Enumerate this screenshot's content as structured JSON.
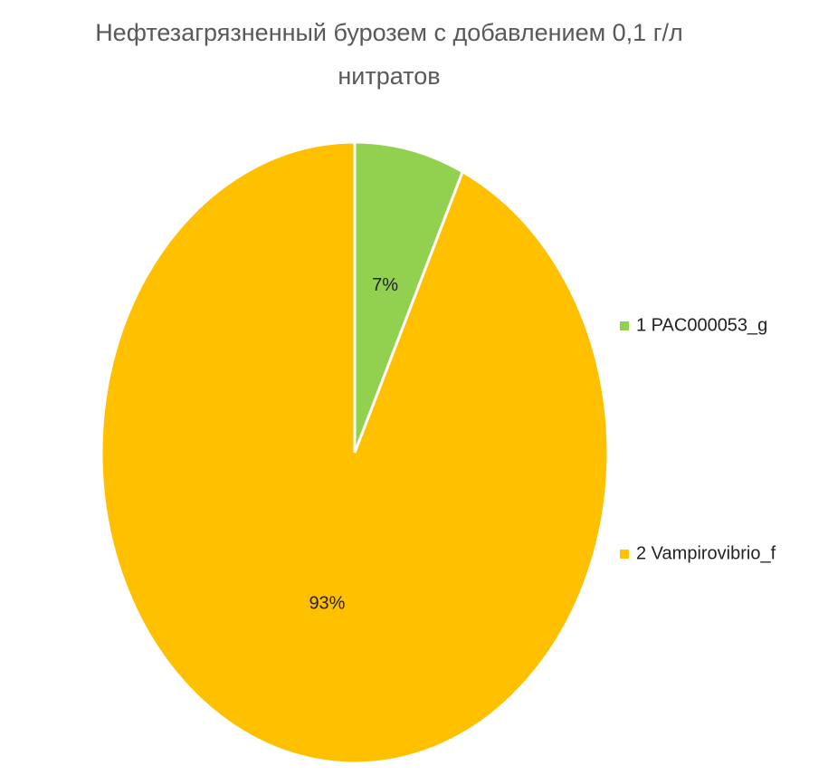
{
  "chart_data": {
    "type": "pie",
    "title": "Нефтезагрязненный бурозем с добавлением 0,1 г/л нитратов",
    "categories": [
      "1 PAC000053_g",
      "2 Vampirovibrio_f"
    ],
    "values": [
      7,
      93
    ],
    "value_labels": [
      "7%",
      "93%"
    ],
    "colors": [
      "#92d050",
      "#ffc000"
    ],
    "legend": "right"
  }
}
